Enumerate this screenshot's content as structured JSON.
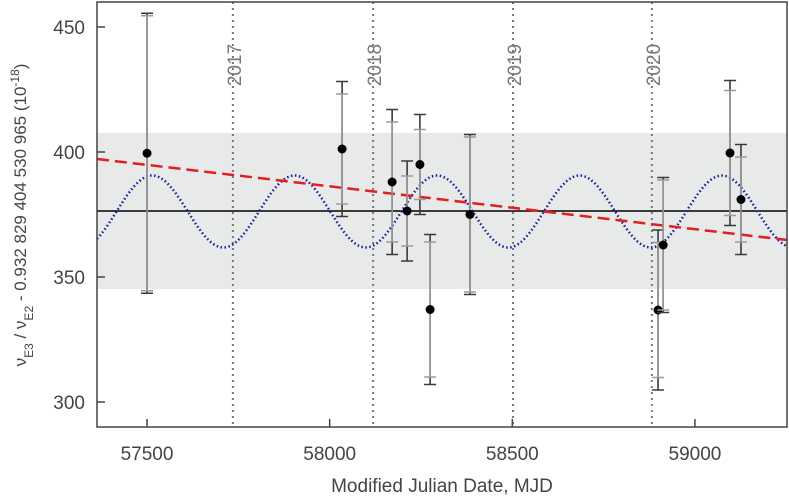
{
  "chart_data": {
    "type": "errorbar",
    "xlabel": "Modified Julian Date, MJD",
    "ylabel_parts": [
      {
        "text": "ν"
      },
      {
        "text": "E3",
        "sub": true
      },
      {
        "text": " / ν"
      },
      {
        "text": "E2",
        "sub": true
      },
      {
        "text": " - 0.932 829 404 530 965 (10"
      },
      {
        "text": "-18",
        "sup": true
      },
      {
        "text": ")"
      }
    ],
    "xlim": [
      57363,
      59252
    ],
    "ylim": [
      290,
      460
    ],
    "xticks": [
      57500,
      58000,
      58500,
      59000
    ],
    "yticks": [
      300,
      350,
      400,
      450
    ],
    "x": [
      57500,
      58034,
      58171,
      58212,
      58247,
      58275,
      58384,
      58899,
      58913,
      59096,
      59126
    ],
    "values": [
      399.5,
      401.2,
      388,
      376.4,
      395,
      337,
      375,
      336.8,
      362.8,
      399.6,
      381
    ],
    "err_total": [
      56,
      27,
      29,
      20,
      20,
      30,
      32,
      32,
      27,
      29,
      22
    ],
    "err_stat": [
      55,
      22,
      24,
      14,
      14,
      27,
      31,
      27,
      26,
      25,
      17
    ],
    "color": "#000000",
    "err_total_color": "#3a3a3a",
    "err_stat_color": "#9a9a9a",
    "mean": 376.4,
    "band": [
      345.2,
      407.6
    ],
    "band_color": "#e8e9e9",
    "trend": {
      "x": [
        57363,
        59252
      ],
      "values": [
        397.2,
        364.8
      ],
      "color": "#e02020"
    },
    "sine": {
      "mean": 376.2,
      "amplitude": 14.4,
      "period": 390,
      "peak_x": 57514,
      "color": "#1a1aa6"
    },
    "years": [
      {
        "x": 57735,
        "label": "2017"
      },
      {
        "x": 58119,
        "label": "2018"
      },
      {
        "x": 58502,
        "label": "2019"
      },
      {
        "x": 58882,
        "label": "2020"
      }
    ]
  }
}
